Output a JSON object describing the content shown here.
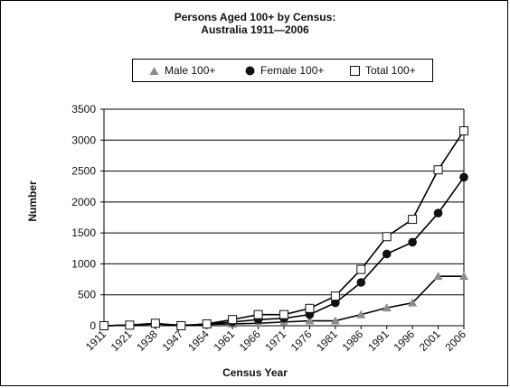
{
  "title_line1": "Persons Aged 100+ by Census:",
  "title_line2": "Australia 1911—2006",
  "chart_data": {
    "type": "line",
    "xlabel": "Census Year",
    "ylabel": "Number",
    "ylim": [
      0,
      3500
    ],
    "yticks": [
      0,
      500,
      1000,
      1500,
      2000,
      2500,
      3000,
      3500
    ],
    "grid": "horizontal",
    "legend_position": "top",
    "categories": [
      "1911",
      "1921",
      "1938",
      "1947",
      "1954",
      "1961",
      "1966",
      "1971",
      "1976",
      "1981",
      "1986",
      "1991",
      "1996",
      "2001",
      "2006"
    ],
    "series": [
      {
        "name": "Male 100+",
        "marker": "triangle",
        "color": "#8c8c8c",
        "values": [
          0,
          10,
          30,
          10,
          20,
          30,
          40,
          60,
          80,
          80,
          180,
          290,
          370,
          800,
          800
        ]
      },
      {
        "name": "Female 100+",
        "marker": "circle",
        "color": "#111111",
        "values": [
          0,
          10,
          30,
          0,
          30,
          60,
          100,
          120,
          180,
          370,
          700,
          1160,
          1350,
          1820,
          2400
        ]
      },
      {
        "name": "Total 100+",
        "marker": "square",
        "color": "#111111",
        "values": [
          0,
          10,
          40,
          0,
          30,
          100,
          180,
          180,
          280,
          480,
          910,
          1440,
          1720,
          2520,
          3150
        ]
      }
    ]
  }
}
